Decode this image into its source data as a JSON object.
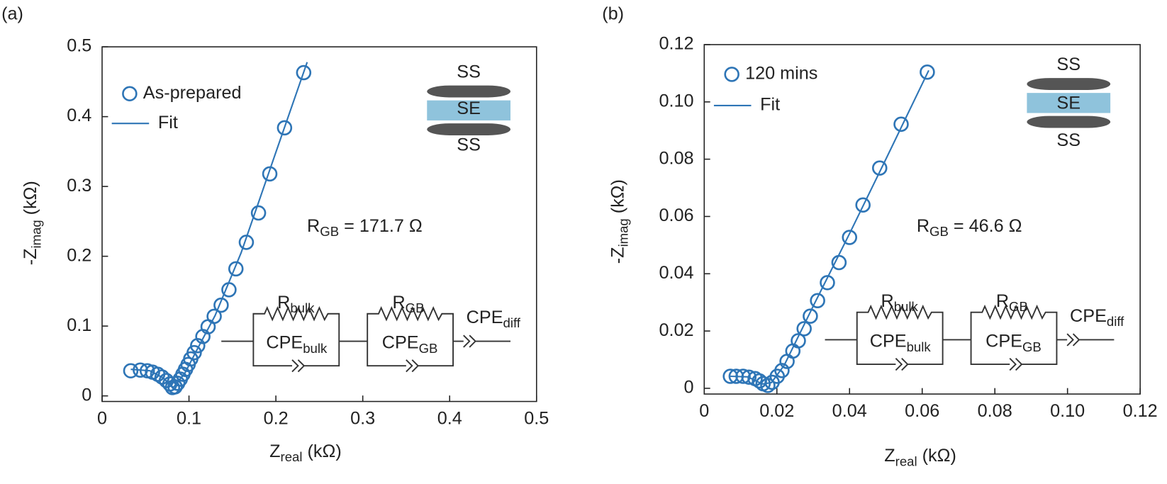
{
  "chart_data": [
    {
      "type": "scatter",
      "panel_label": "(a)",
      "xlabel": {
        "main": "Z",
        "sub": "real",
        "rest": " (kΩ)"
      },
      "ylabel": {
        "main": "-Z",
        "sub": "imag",
        "rest": " (kΩ)"
      },
      "xlim": [
        0,
        0.5
      ],
      "ylim": [
        -0.008,
        0.5
      ],
      "xticks": [
        0,
        0.1,
        0.2,
        0.3,
        0.4,
        0.5
      ],
      "yticks": [
        0,
        0.1,
        0.2,
        0.3,
        0.4,
        0.5
      ],
      "series": [
        {
          "name": "As-prepared",
          "color": "#2e75b6",
          "marker": "circle",
          "x": [
            0.033,
            0.044,
            0.052,
            0.058,
            0.064,
            0.069,
            0.074,
            0.078,
            0.081,
            0.084,
            0.087,
            0.09,
            0.093,
            0.096,
            0.099,
            0.102,
            0.106,
            0.11,
            0.116,
            0.122,
            0.129,
            0.137,
            0.146,
            0.154,
            0.166,
            0.18,
            0.193,
            0.21,
            0.232
          ],
          "values": [
            0.036,
            0.037,
            0.036,
            0.034,
            0.031,
            0.027,
            0.022,
            0.017,
            0.012,
            0.013,
            0.018,
            0.024,
            0.031,
            0.038,
            0.045,
            0.053,
            0.062,
            0.072,
            0.085,
            0.099,
            0.114,
            0.13,
            0.152,
            0.182,
            0.22,
            0.262,
            0.318,
            0.384,
            0.463
          ]
        },
        {
          "name": "Fit",
          "color": "#2e75b6",
          "marker": "line",
          "x": [
            0.033,
            0.055,
            0.07,
            0.082,
            0.095,
            0.11,
            0.13,
            0.16,
            0.2,
            0.236
          ],
          "values": [
            0.038,
            0.036,
            0.026,
            0.012,
            0.032,
            0.068,
            0.115,
            0.205,
            0.349,
            0.478
          ]
        }
      ],
      "annotations": [
        {
          "main": "R",
          "sub": "GB",
          "rest": " = 171.7 Ω"
        }
      ],
      "circuit": [
        {
          "main": "R",
          "sub": "bulk"
        },
        {
          "main": "CPE",
          "sub": "bulk"
        },
        {
          "main": "R",
          "sub": "GB"
        },
        {
          "main": "CPE",
          "sub": "GB"
        },
        {
          "main": "CPE",
          "sub": "diff"
        }
      ],
      "cell_labels": [
        "SS",
        "SE",
        "SS"
      ]
    },
    {
      "type": "scatter",
      "panel_label": "(b)",
      "xlabel": {
        "main": "Z",
        "sub": "real",
        "rest": " (kΩ)"
      },
      "ylabel": {
        "main": "-Z",
        "sub": "imag",
        "rest": " (kΩ)"
      },
      "xlim": [
        0,
        0.12
      ],
      "ylim": [
        -0.002,
        0.12
      ],
      "xticks": [
        0,
        0.02,
        0.04,
        0.06,
        0.08,
        {
          "value": 0.1,
          "label": "0.10"
        },
        0.12
      ],
      "yticks": [
        0,
        0.02,
        0.04,
        0.06,
        0.08,
        {
          "value": 0.1,
          "label": "0.10"
        },
        0.12
      ],
      "series": [
        {
          "name": "120 mins",
          "color": "#2e75b6",
          "marker": "circle",
          "x": [
            0.0072,
            0.0088,
            0.0107,
            0.0123,
            0.014,
            0.0152,
            0.0162,
            0.0175,
            0.0187,
            0.0201,
            0.0214,
            0.0228,
            0.0244,
            0.0259,
            0.0275,
            0.0292,
            0.0312,
            0.0339,
            0.0371,
            0.04,
            0.0437,
            0.0483,
            0.0542,
            0.0614
          ],
          "values": [
            0.0042,
            0.0042,
            0.0042,
            0.0039,
            0.0034,
            0.0026,
            0.0016,
            0.001,
            0.0021,
            0.0042,
            0.0062,
            0.0094,
            0.013,
            0.0166,
            0.0208,
            0.0252,
            0.0306,
            0.0369,
            0.0439,
            0.0527,
            0.064,
            0.0769,
            0.0922,
            0.1104
          ]
        },
        {
          "name": "Fit",
          "color": "#2e75b6",
          "marker": "line",
          "x": [
            0.0072,
            0.012,
            0.016,
            0.0185,
            0.022,
            0.03,
            0.04,
            0.05,
            0.0618
          ],
          "values": [
            0.0042,
            0.004,
            0.0015,
            0.002,
            0.008,
            0.0287,
            0.054,
            0.08,
            0.111
          ]
        }
      ],
      "annotations": [
        {
          "main": "R",
          "sub": "GB",
          "rest": " = 46.6 Ω"
        }
      ],
      "circuit": [
        {
          "main": "R",
          "sub": "bulk"
        },
        {
          "main": "CPE",
          "sub": "bulk"
        },
        {
          "main": "R",
          "sub": "GB"
        },
        {
          "main": "CPE",
          "sub": "GB"
        },
        {
          "main": "CPE",
          "sub": "diff"
        }
      ],
      "cell_labels": [
        "SS",
        "SE",
        "SS"
      ]
    }
  ]
}
